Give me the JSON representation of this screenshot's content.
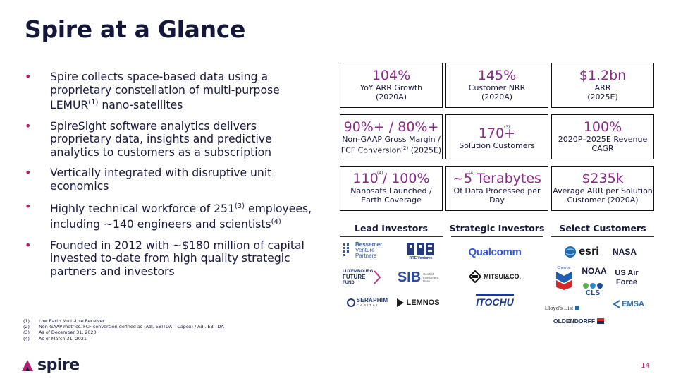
{
  "title": "Spire at a Glance",
  "bullets": {
    "b1_a": "Spire collects space-based data using a proprietary constellation of multi-purpose LEMUR",
    "b1_sup": "(1)",
    "b1_b": " nano-satellites",
    "b2": "SpireSight software analytics delivers proprietary data, insights and predictive analytics to customers as a subscription",
    "b3": "Vertically integrated with disruptive unit economics",
    "b4_a": "Highly technical workforce of 251",
    "b4_sup": "(3)",
    "b4_b": " employees, including ~140 engineers and scientists",
    "b4_sup2": "(4)",
    "b5": "Founded in 2012 with ~$180 million of capital invested to-date from high quality strategic partners and investors"
  },
  "metrics": {
    "m1": {
      "value": "104%",
      "line1": "YoY ARR Growth",
      "line2": "(2020A)"
    },
    "m2": {
      "value": "145%",
      "line1": "Customer NRR",
      "line2": "(2020A)"
    },
    "m3": {
      "value": "$1.2bn",
      "line1": "ARR",
      "line2": "(2025E)"
    },
    "m4": {
      "value": "90%+ / 80%+",
      "line1": "Non-GAAP Gross Margin /",
      "line2a": "FCF Conversion",
      "line2sup": "(2)",
      "line2b": " (2025E)"
    },
    "m5": {
      "value": "170+",
      "note": "(3)",
      "line1": "Solution Customers"
    },
    "m6": {
      "value": "100%",
      "line1": "2020P–2025E Revenue",
      "line2": "CAGR"
    },
    "m7": {
      "value_a": "110",
      "note": "(4)",
      "value_b": " / 100%",
      "line1": "Nanosats Launched /",
      "line2": "Earth Coverage"
    },
    "m8": {
      "value_a": "~5",
      "note": "(4)",
      "value_b": " Terabytes",
      "line1": "Of Data Processed per",
      "line2": "Day"
    },
    "m9": {
      "value": "$235k",
      "line1": "Average ARR per Solution",
      "line2": "Customer (2020A)"
    }
  },
  "investors": {
    "lead_header": "Lead Investors",
    "strategic_header": "Strategic Investors",
    "customers_header": "Select Customers",
    "lead": {
      "bessemer": [
        "Bessemer",
        "Venture",
        "Partners"
      ],
      "rre": "RRE Ventures",
      "lux": [
        "LUXEMBOURG",
        "FUTURE",
        "FUND"
      ],
      "sib": "SIB",
      "sib_sub": [
        "Scottish",
        "Investment",
        "Bank"
      ],
      "seraphim": "SERAPHIM",
      "seraphim_sub": "CAPITAL",
      "lemnos": "LEMNOS"
    },
    "strategic": {
      "qualcomm": "Qualcomm",
      "mitsui": "MITSUI&CO.",
      "itochu": "ITOCHU"
    },
    "customers": {
      "esri": "esri",
      "nasa": "NASA",
      "noaa": "NOAA",
      "usaf": [
        "US Air",
        "Force"
      ],
      "chevron": "Chevron",
      "cls": "CLS",
      "emsa": "EMSA",
      "lloyds": "Lloyd's List",
      "oldendorff": "OLDENDORFF"
    }
  },
  "footnotes": [
    {
      "num": "(1)",
      "text": "Low Earth Multi-Use Receiver"
    },
    {
      "num": "(2)",
      "text": "Non-GAAP metrics. FCF conversion defined as (Adj. EBITDA – Capex) / Adj. EBITDA"
    },
    {
      "num": "(3)",
      "text": "As of December 31, 2020"
    },
    {
      "num": "(4)",
      "text": "As of March 31, 2021"
    }
  ],
  "brand": {
    "name": "spire"
  },
  "page_number": "14",
  "colors": {
    "accent": "#8a2a86",
    "bullet": "#ab1e73",
    "navy": "#14163a"
  }
}
